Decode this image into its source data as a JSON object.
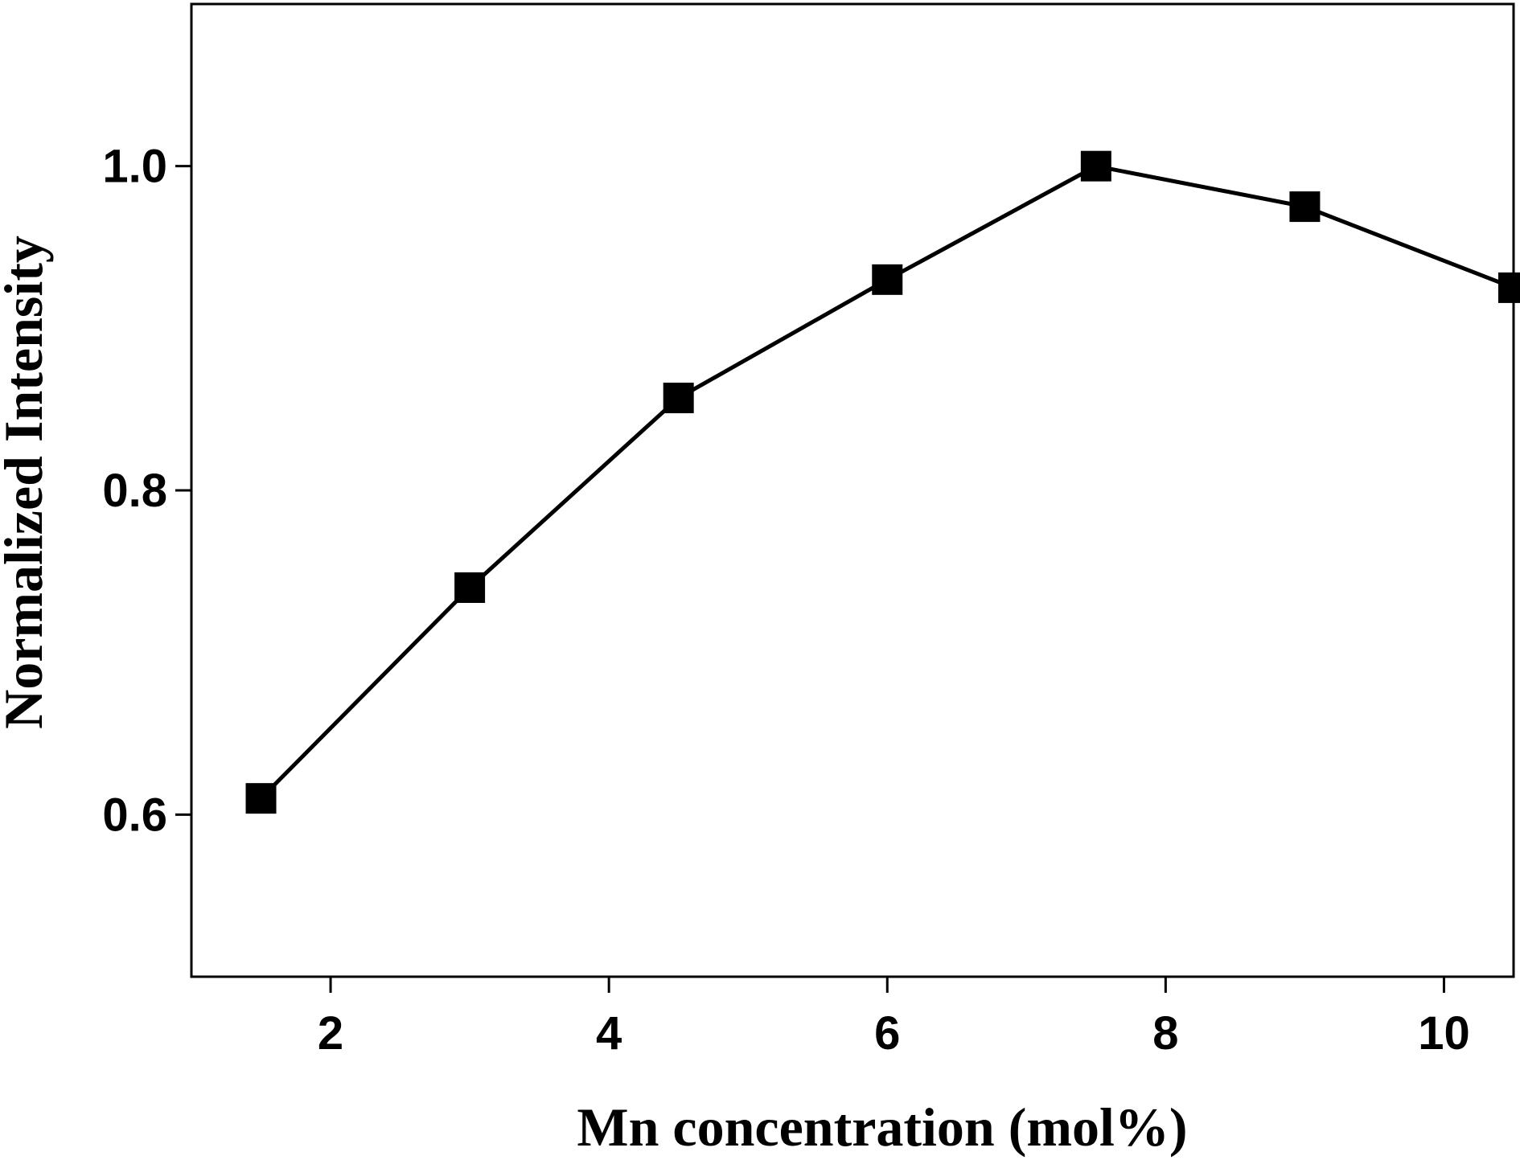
{
  "chart_data": {
    "type": "line",
    "title": "",
    "xlabel": "Mn concentration (mol%)",
    "ylabel": "Normalized Intensity",
    "xlim": [
      1.0,
      10.5
    ],
    "ylim": [
      0.5,
      1.1
    ],
    "xticks": [
      2,
      4,
      6,
      8,
      10
    ],
    "xtick_labels": [
      "2",
      "4",
      "6",
      "8",
      "10"
    ],
    "yticks": [
      0.6,
      0.8,
      1.0
    ],
    "ytick_labels": [
      "0.6",
      "0.8",
      "1.0"
    ],
    "grid": false,
    "legend": "none",
    "series": [
      {
        "marker": "filled-square",
        "color": "#000000",
        "x": [
          1.5,
          3.0,
          4.5,
          6.0,
          7.5,
          9.0,
          10.5
        ],
        "y": [
          0.61,
          0.74,
          0.857,
          0.93,
          1.0,
          0.975,
          0.925
        ]
      }
    ]
  }
}
